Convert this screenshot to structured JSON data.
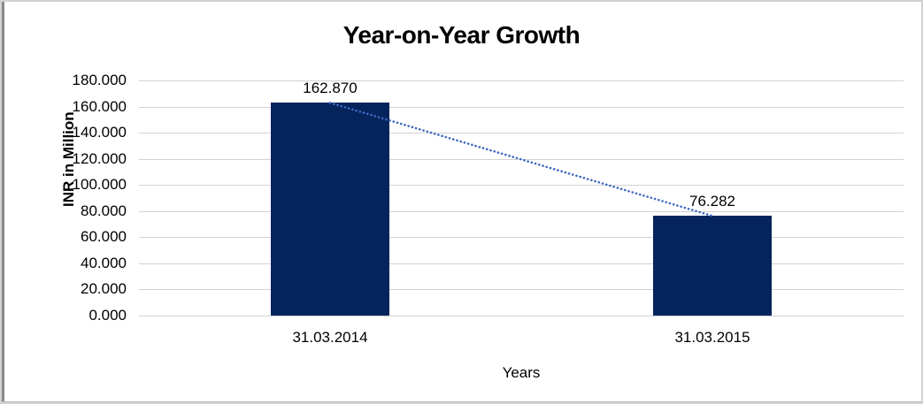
{
  "chart_data": {
    "type": "bar",
    "title": "Year-on-Year Growth",
    "xlabel": "Years",
    "ylabel": "INR in Million",
    "categories": [
      "31.03.2014",
      "31.03.2015"
    ],
    "values": [
      162.87,
      76.282
    ],
    "data_labels": [
      "162.870",
      "76.282"
    ],
    "ylim": [
      0,
      180
    ],
    "y_tick_step": 20,
    "y_ticks": [
      "180.000",
      "160.000",
      "140.000",
      "120.000",
      "100.000",
      "80.000",
      "60.000",
      "40.000",
      "20.000",
      "0.000"
    ],
    "grid": true,
    "legend": "none",
    "trendline": {
      "style": "dotted",
      "connects": "bar tops"
    }
  },
  "colors": {
    "bar": "#06245c",
    "trendline": "#3d68c4",
    "gridline": "#d2d2d2",
    "text": "#000000",
    "background": "#ffffff",
    "frame_border": "#d2d2d2",
    "frame_edge": "#8a8a8a"
  },
  "layout_hints": {
    "bar_width_ratio": 0.31
  }
}
